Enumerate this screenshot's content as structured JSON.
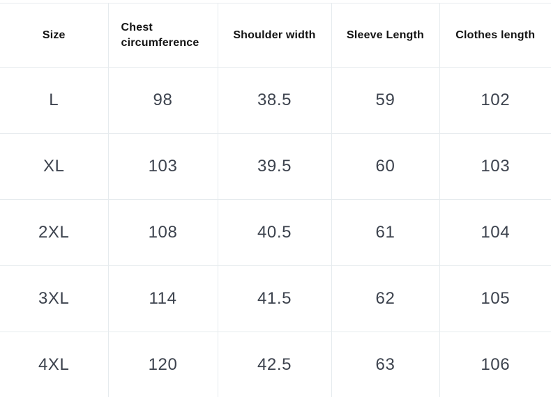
{
  "chart_data": {
    "type": "table",
    "title": "",
    "columns": [
      "Size",
      "Chest circumference",
      "Shoulder width",
      "Sleeve Length",
      "Clothes length"
    ],
    "rows": [
      [
        "L",
        "98",
        "38.5",
        "59",
        "102"
      ],
      [
        "XL",
        "103",
        "39.5",
        "60",
        "103"
      ],
      [
        "2XL",
        "108",
        "40.5",
        "61",
        "104"
      ],
      [
        "3XL",
        "114",
        "41.5",
        "62",
        "105"
      ],
      [
        "4XL",
        "120",
        "42.5",
        "63",
        "106"
      ]
    ]
  },
  "colors": {
    "background": "#ffffff",
    "grid_border": "#e6ebee",
    "header_text": "#131313",
    "data_text": "#3d434e"
  }
}
